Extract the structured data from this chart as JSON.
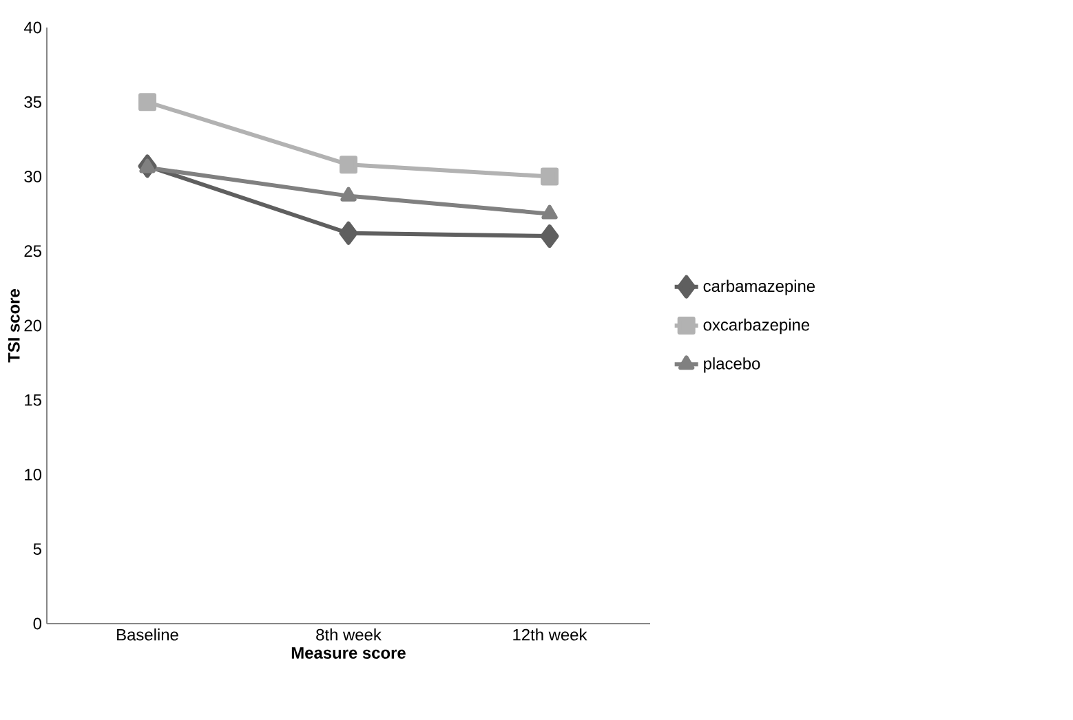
{
  "chart_data": {
    "type": "line",
    "xlabel": "Measure score",
    "ylabel": "TSI score",
    "categories": [
      "Baseline",
      "8th week",
      "12th week"
    ],
    "series": [
      {
        "name": "carbamazepine",
        "color": "#5f5f5f",
        "marker": "diamond",
        "values": [
          30.7,
          26.2,
          26.0
        ]
      },
      {
        "name": "oxcarbazepine",
        "color": "#b2b2b2",
        "marker": "square",
        "values": [
          35.0,
          30.8,
          30.0
        ]
      },
      {
        "name": "placebo",
        "color": "#808080",
        "marker": "triangle",
        "values": [
          30.6,
          28.7,
          27.5
        ]
      }
    ],
    "ylim": [
      0,
      40
    ],
    "yticks": [
      0,
      5,
      10,
      15,
      20,
      25,
      30,
      35,
      40
    ],
    "grid": false,
    "legend": "right",
    "line_style": "solid"
  }
}
